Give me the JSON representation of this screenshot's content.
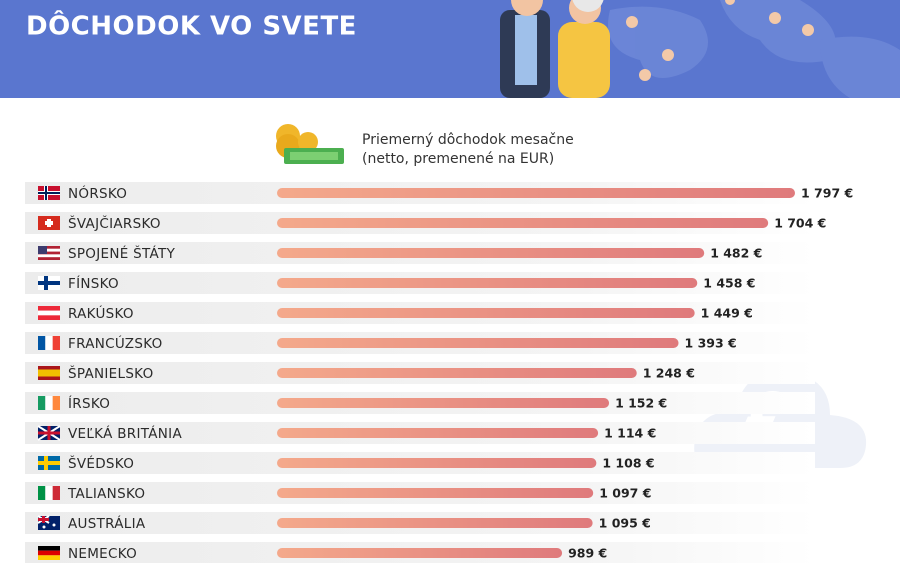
{
  "chart_data": {
    "type": "bar",
    "orientation": "horizontal",
    "title": "DÔCHODOK VO SVETE",
    "legend_text": [
      "Priemerný dôchodok mesačne",
      "(netto, premenené na EUR)"
    ],
    "categories": [
      "NÓRSKO",
      "ŠVAJČIARSKO",
      "SPOJENÉ ŠTÁTY",
      "FÍNSKO",
      "RAKÚSKO",
      "FRANCÚZSKO",
      "ŠPANIELSKO",
      "ÍRSKO",
      "VEĽKÁ BRITÁNIA",
      "ŠVÉDSKO",
      "TALIANSKO",
      "AUSTRÁLIA",
      "NEMECKO"
    ],
    "values": [
      1797,
      1704,
      1482,
      1458,
      1449,
      1393,
      1248,
      1152,
      1114,
      1108,
      1097,
      1095,
      989
    ],
    "value_labels": [
      "1 797 €",
      "1 704 €",
      "1 482 €",
      "1 458 €",
      "1 449 €",
      "1 393 €",
      "1 248 €",
      "1 152 €",
      "1 114 €",
      "1 108 €",
      "1 097 €",
      "1 095 €",
      "989 €"
    ],
    "colors": [
      "#f4a98b",
      "#df7a7c"
    ],
    "background_icon": "€"
  }
}
